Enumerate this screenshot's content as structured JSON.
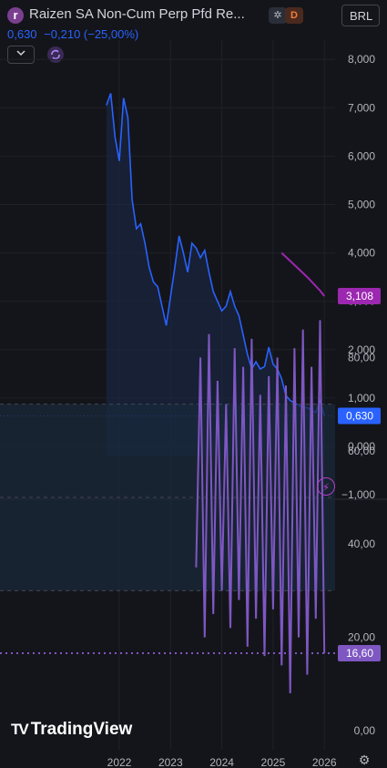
{
  "header": {
    "logo_letter": "r",
    "title": "Raizen SA Non-Cum Perp Pfd Re...",
    "flag_badge": "✲",
    "type_badge": "D",
    "currency": "BRL",
    "last_price": "0,630",
    "change": "−0,210 (−25,00%)"
  },
  "watermark": "TradingView",
  "colors": {
    "price_line": "#2962ff",
    "indicator": "#7e57c2",
    "ma_line": "#9c27b0",
    "background": "#14151a"
  },
  "chart_data": [
    {
      "type": "line",
      "series": [
        {
          "x": [
            "2021-10",
            "2021-11",
            "2021-12",
            "2022-01",
            "2022-02",
            "2022-03",
            "2022-04",
            "2022-05",
            "2022-06",
            "2022-07",
            "2022-08",
            "2022-09",
            "2022-10",
            "2022-11",
            "2022-12",
            "2023-01",
            "2023-02",
            "2023-03",
            "2023-04",
            "2023-05",
            "2023-06",
            "2023-07",
            "2023-08",
            "2023-09",
            "2023-10",
            "2023-11",
            "2023-12",
            "2024-01",
            "2024-02",
            "2024-03",
            "2024-04",
            "2024-05",
            "2024-06",
            "2024-07",
            "2024-08",
            "2024-09",
            "2024-10",
            "2024-11",
            "2024-12",
            "2025-01",
            "2025-02",
            "2025-03",
            "2025-04",
            "2025-05",
            "2025-06",
            "2025-07",
            "2025-08",
            "2025-09",
            "2025-10",
            "2025-11",
            "2025-12",
            "2026-01"
          ],
          "values": [
            7.05,
            7.3,
            6.4,
            5.9,
            7.2,
            6.8,
            5.1,
            4.5,
            4.6,
            4.2,
            3.7,
            3.4,
            3.3,
            2.9,
            2.5,
            3.1,
            3.7,
            4.35,
            4.0,
            3.6,
            4.2,
            4.1,
            3.9,
            4.05,
            3.6,
            3.2,
            3.0,
            2.8,
            2.9,
            3.2,
            2.9,
            2.7,
            2.3,
            1.9,
            1.6,
            1.75,
            1.6,
            1.65,
            2.05,
            1.7,
            1.6,
            1.4,
            1.05,
            0.95,
            0.9,
            0.85,
            0.8,
            0.8,
            0.75,
            0.7,
            0.95,
            0.63
          ]
        },
        {
          "name": "",
          "x": [
            "2025-03",
            "2025-06",
            "2025-09",
            "2025-12",
            "2026-01"
          ],
          "values": [
            4.0,
            3.75,
            3.5,
            3.22,
            3.108
          ]
        }
      ],
      "ylim": [
        -1.0,
        8.0
      ],
      "yticks": [
        "8,000",
        "7,000",
        "6,000",
        "5,000",
        "4,000",
        "3,000",
        "2,000",
        "1,000",
        "0,000",
        "−1,000"
      ],
      "labels": {
        "last_price": "0,630",
        "ma_value": "3,108"
      }
    },
    {
      "type": "line",
      "series": [
        {
          "x": [
            "2023-07",
            "2023-08",
            "2023-09",
            "2023-10",
            "2023-11",
            "2023-12",
            "2024-01",
            "2024-02",
            "2024-03",
            "2024-04",
            "2024-05",
            "2024-06",
            "2024-07",
            "2024-08",
            "2024-09",
            "2024-10",
            "2024-11",
            "2024-12",
            "2025-01",
            "2025-02",
            "2025-03",
            "2025-04",
            "2025-05",
            "2025-06",
            "2025-07",
            "2025-08",
            "2025-09",
            "2025-10",
            "2025-11",
            "2025-12",
            "2026-01"
          ],
          "values": [
            35,
            80,
            20,
            85,
            25,
            75,
            30,
            70,
            22,
            82,
            28,
            78,
            18,
            84,
            24,
            72,
            16,
            76,
            26,
            80,
            14,
            74,
            8,
            82,
            20,
            86,
            12,
            78,
            24,
            88,
            16.6
          ]
        }
      ],
      "ylim": [
        0,
        90
      ],
      "yticks": [
        "80,00",
        "60,00",
        "40,00",
        "20,00",
        "0,00"
      ],
      "band": [
        30,
        70
      ],
      "labels": {
        "value": "16,60"
      }
    }
  ],
  "x_axis": {
    "ticks": [
      "2022",
      "2023",
      "2024",
      "2025",
      "2026"
    ]
  }
}
